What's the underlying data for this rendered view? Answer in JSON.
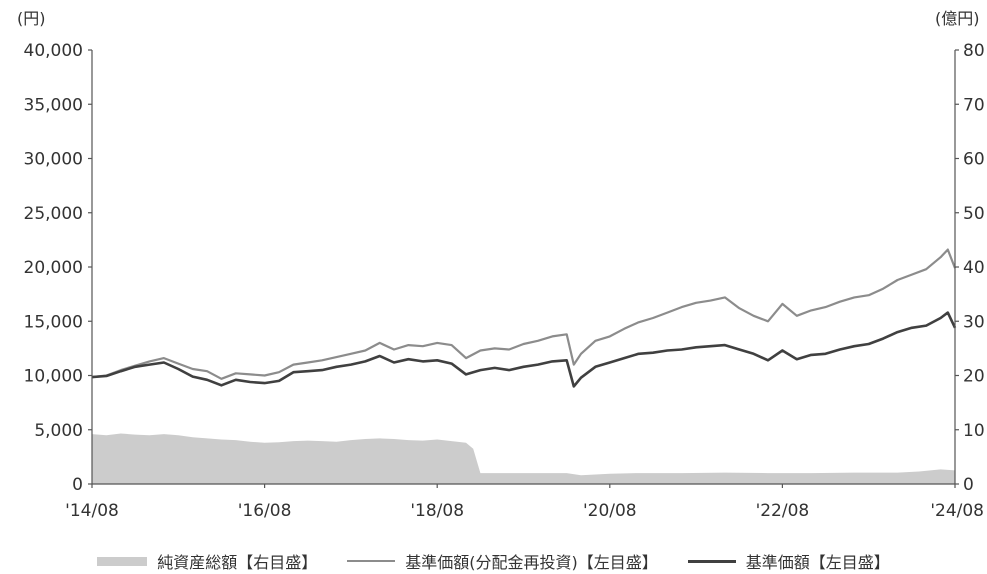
{
  "chart_data": {
    "type": "line",
    "title": "",
    "left_axis": {
      "unit": "(円)",
      "ylim": [
        0,
        40000
      ],
      "ticks": [
        0,
        5000,
        10000,
        15000,
        20000,
        25000,
        30000,
        35000,
        40000
      ],
      "tick_labels": [
        "0",
        "5,000",
        "10,000",
        "15,000",
        "20,000",
        "25,000",
        "30,000",
        "35,000",
        "40,000"
      ]
    },
    "right_axis": {
      "unit": "(億円)",
      "ylim": [
        0,
        80
      ],
      "ticks": [
        0,
        10,
        20,
        30,
        40,
        50,
        60,
        70,
        80
      ],
      "tick_labels": [
        "0",
        "10",
        "20",
        "30",
        "40",
        "50",
        "60",
        "70",
        "80"
      ]
    },
    "x_axis": {
      "xlim": [
        "2014-08",
        "2024-08"
      ],
      "tick_positions": [
        "2014-08",
        "2016-08",
        "2018-08",
        "2020-08",
        "2022-08",
        "2024-08"
      ],
      "tick_labels": [
        "'14/08",
        "'16/08",
        "'18/08",
        "'20/08",
        "'22/08",
        "'24/08"
      ]
    },
    "grid": false,
    "legend_position": "bottom",
    "series": [
      {
        "name": "純資産総額【右目盛】",
        "kind": "area",
        "axis": "right",
        "color": "#cccccc",
        "x": [
          "2014-08",
          "2014-10",
          "2014-12",
          "2015-02",
          "2015-04",
          "2015-06",
          "2015-08",
          "2015-10",
          "2015-12",
          "2016-02",
          "2016-04",
          "2016-06",
          "2016-08",
          "2016-10",
          "2016-12",
          "2017-02",
          "2017-04",
          "2017-06",
          "2017-08",
          "2017-10",
          "2017-12",
          "2018-02",
          "2018-04",
          "2018-06",
          "2018-08",
          "2018-10",
          "2018-12",
          "2019-01",
          "2019-02",
          "2019-06",
          "2019-12",
          "2020-02",
          "2020-04",
          "2020-08",
          "2020-12",
          "2021-06",
          "2021-12",
          "2022-06",
          "2022-12",
          "2023-06",
          "2023-12",
          "2024-03",
          "2024-06",
          "2024-08"
        ],
        "values": [
          9.2,
          9.0,
          9.3,
          9.1,
          9.0,
          9.2,
          9.0,
          8.6,
          8.4,
          8.2,
          8.1,
          7.8,
          7.6,
          7.7,
          7.9,
          8.0,
          7.9,
          7.8,
          8.1,
          8.3,
          8.4,
          8.3,
          8.1,
          8.0,
          8.2,
          7.9,
          7.6,
          6.5,
          2.0,
          2.0,
          2.0,
          2.0,
          1.6,
          1.9,
          2.0,
          2.0,
          2.1,
          2.0,
          2.0,
          2.1,
          2.1,
          2.3,
          2.7,
          2.5
        ]
      },
      {
        "name": "基準価額(分配金再投資)【左目盛】",
        "kind": "line",
        "axis": "left",
        "color": "#8c8c8c",
        "x": [
          "2014-08",
          "2014-10",
          "2014-12",
          "2015-02",
          "2015-04",
          "2015-06",
          "2015-08",
          "2015-10",
          "2015-12",
          "2016-02",
          "2016-04",
          "2016-06",
          "2016-08",
          "2016-10",
          "2016-12",
          "2017-02",
          "2017-04",
          "2017-06",
          "2017-08",
          "2017-10",
          "2017-12",
          "2018-02",
          "2018-04",
          "2018-06",
          "2018-08",
          "2018-10",
          "2018-12",
          "2019-02",
          "2019-04",
          "2019-06",
          "2019-08",
          "2019-10",
          "2019-12",
          "2020-02",
          "2020-03",
          "2020-04",
          "2020-06",
          "2020-08",
          "2020-10",
          "2020-12",
          "2021-02",
          "2021-04",
          "2021-06",
          "2021-08",
          "2021-10",
          "2021-12",
          "2022-02",
          "2022-04",
          "2022-06",
          "2022-08",
          "2022-10",
          "2022-12",
          "2023-02",
          "2023-04",
          "2023-06",
          "2023-08",
          "2023-10",
          "2023-12",
          "2024-02",
          "2024-04",
          "2024-06",
          "2024-07",
          "2024-08"
        ],
        "values": [
          9850,
          10000,
          10500,
          10900,
          11300,
          11600,
          11100,
          10600,
          10400,
          9700,
          10200,
          10100,
          10000,
          10300,
          11000,
          11200,
          11400,
          11700,
          12000,
          12300,
          13000,
          12400,
          12800,
          12700,
          13000,
          12800,
          11600,
          12300,
          12500,
          12400,
          12900,
          13200,
          13600,
          13800,
          11000,
          12000,
          13200,
          13600,
          14300,
          14900,
          15300,
          15800,
          16300,
          16700,
          16900,
          17200,
          16200,
          15500,
          15000,
          16600,
          15500,
          16000,
          16300,
          16800,
          17200,
          17400,
          18000,
          18800,
          19300,
          19800,
          20900,
          21600,
          19900
        ]
      },
      {
        "name": "基準価額【左目盛】",
        "kind": "line",
        "axis": "left",
        "color": "#404040",
        "x": [
          "2014-08",
          "2014-10",
          "2014-12",
          "2015-02",
          "2015-04",
          "2015-06",
          "2015-08",
          "2015-10",
          "2015-12",
          "2016-02",
          "2016-04",
          "2016-06",
          "2016-08",
          "2016-10",
          "2016-12",
          "2017-02",
          "2017-04",
          "2017-06",
          "2017-08",
          "2017-10",
          "2017-12",
          "2018-02",
          "2018-04",
          "2018-06",
          "2018-08",
          "2018-10",
          "2018-12",
          "2019-02",
          "2019-04",
          "2019-06",
          "2019-08",
          "2019-10",
          "2019-12",
          "2020-02",
          "2020-03",
          "2020-04",
          "2020-06",
          "2020-08",
          "2020-10",
          "2020-12",
          "2021-02",
          "2021-04",
          "2021-06",
          "2021-08",
          "2021-10",
          "2021-12",
          "2022-02",
          "2022-04",
          "2022-06",
          "2022-08",
          "2022-10",
          "2022-12",
          "2023-02",
          "2023-04",
          "2023-06",
          "2023-08",
          "2023-10",
          "2023-12",
          "2024-02",
          "2024-04",
          "2024-06",
          "2024-07",
          "2024-08"
        ],
        "values": [
          9850,
          9950,
          10400,
          10800,
          11000,
          11200,
          10600,
          9900,
          9600,
          9100,
          9600,
          9400,
          9300,
          9500,
          10300,
          10400,
          10500,
          10800,
          11000,
          11300,
          11800,
          11200,
          11500,
          11300,
          11400,
          11100,
          10100,
          10500,
          10700,
          10500,
          10800,
          11000,
          11300,
          11400,
          9000,
          9800,
          10800,
          11200,
          11600,
          12000,
          12100,
          12300,
          12400,
          12600,
          12700,
          12800,
          12400,
          12000,
          11400,
          12300,
          11500,
          11900,
          12000,
          12400,
          12700,
          12900,
          13400,
          14000,
          14400,
          14600,
          15300,
          15800,
          14400
        ]
      }
    ]
  },
  "legend": {
    "items": [
      {
        "label": "純資産総額【右目盛】",
        "style": "area",
        "color": "#cccccc"
      },
      {
        "label": "基準価額(分配金再投資)【左目盛】",
        "style": "line",
        "color": "#8c8c8c"
      },
      {
        "label": "基準価額【左目盛】",
        "style": "line",
        "color": "#404040"
      }
    ]
  }
}
